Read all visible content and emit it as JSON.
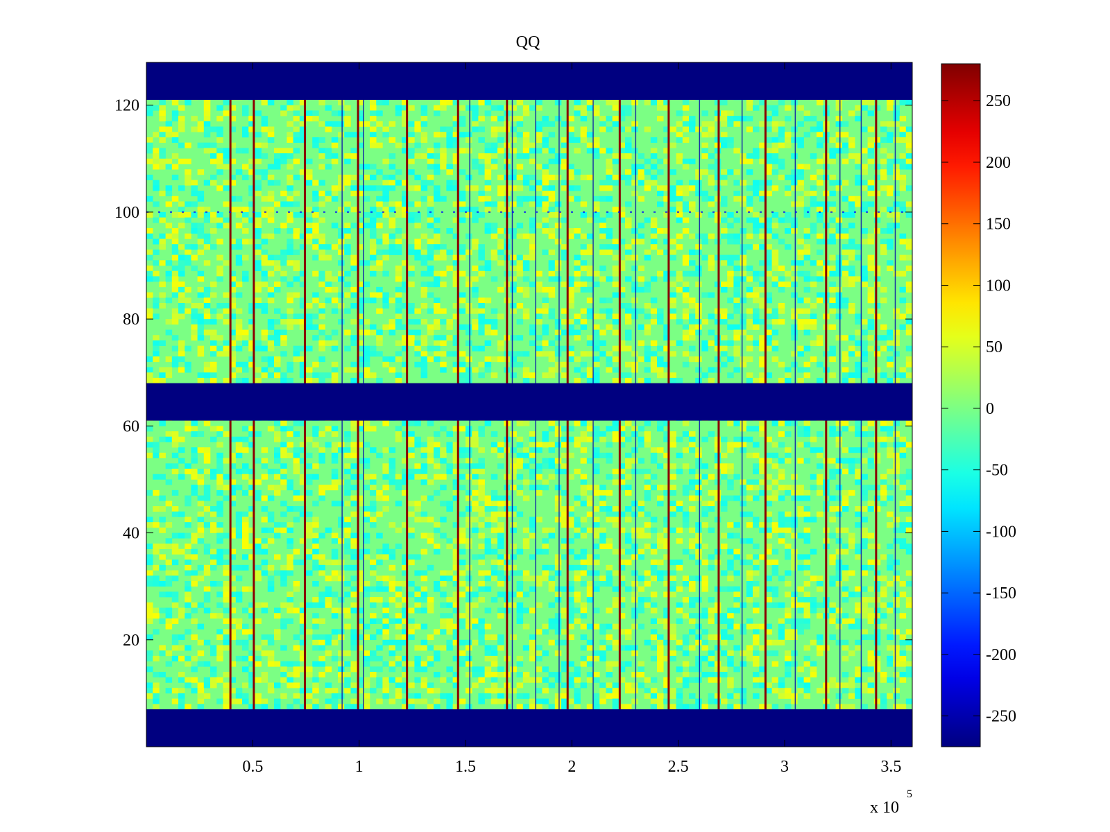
{
  "chart_data": {
    "type": "heatmap",
    "title": "QQ",
    "xlabel": "",
    "ylabel": "",
    "x_multiplier": "x 10",
    "x_multiplier_exponent": "5",
    "xlim": [
      0,
      3.6
    ],
    "ylim": [
      0,
      128
    ],
    "x_ticks": [
      {
        "value": 0.5,
        "label": "0.5"
      },
      {
        "value": 1,
        "label": "1"
      },
      {
        "value": 1.5,
        "label": "1.5"
      },
      {
        "value": 2,
        "label": "2"
      },
      {
        "value": 2.5,
        "label": "2.5"
      },
      {
        "value": 3,
        "label": "3"
      },
      {
        "value": 3.5,
        "label": "3.5"
      }
    ],
    "y_ticks": [
      {
        "value": 20,
        "label": "20"
      },
      {
        "value": 40,
        "label": "40"
      },
      {
        "value": 60,
        "label": "60"
      },
      {
        "value": 80,
        "label": "80"
      },
      {
        "value": 100,
        "label": "100"
      },
      {
        "value": 120,
        "label": "120"
      }
    ],
    "colormap": "jet",
    "color_range": [
      -275,
      280
    ],
    "colorbar_ticks": [
      {
        "value": 250,
        "label": "250"
      },
      {
        "value": 200,
        "label": "200"
      },
      {
        "value": 150,
        "label": "150"
      },
      {
        "value": 100,
        "label": "100"
      },
      {
        "value": 50,
        "label": "50"
      },
      {
        "value": 0,
        "label": "0"
      },
      {
        "value": -50,
        "label": "-50"
      },
      {
        "value": -100,
        "label": "-100"
      },
      {
        "value": -150,
        "label": "-150"
      },
      {
        "value": -200,
        "label": "-200"
      },
      {
        "value": -250,
        "label": "-250"
      }
    ],
    "background_value": 0,
    "masked_rows": [
      {
        "y_range": [
          0,
          7
        ],
        "value": -275
      },
      {
        "y_range": [
          61,
          68
        ],
        "value": -275
      },
      {
        "y_range": [
          121,
          128
        ],
        "value": -275
      }
    ],
    "red_column_lines_x": [
      0.395,
      0.505,
      0.745,
      0.995,
      1.225,
      1.465,
      1.695,
      1.98,
      2.225,
      2.455,
      2.69,
      2.91,
      3.195,
      3.43
    ],
    "column_line_value": 275,
    "dark_column_lines_x": [
      0.92,
      1.02,
      1.52,
      1.72,
      1.83,
      1.94,
      2.1,
      2.3,
      2.6,
      2.8,
      3.05,
      3.26,
      3.36,
      3.52
    ],
    "dark_column_line_value": -250,
    "row_events": [
      {
        "y": 100,
        "value": -200
      }
    ]
  }
}
